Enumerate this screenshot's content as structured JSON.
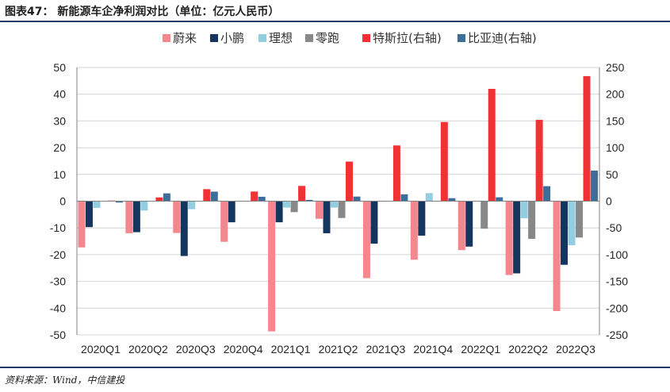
{
  "header": {
    "title": "图表47： 新能源车企净利润对比（单位：亿元人民币）"
  },
  "footer": {
    "source": "资料来源：Wind，中信建投"
  },
  "chart_data": {
    "type": "bar",
    "title": "新能源车企净利润对比（单位：亿元人民币）",
    "categories": [
      "2020Q1",
      "2020Q2",
      "2020Q3",
      "2020Q4",
      "2021Q1",
      "2021Q2",
      "2021Q3",
      "2021Q4",
      "2022Q1",
      "2022Q2",
      "2022Q3"
    ],
    "ylim_left": [
      -50,
      50
    ],
    "yticks_left": [
      "50",
      "40",
      "30",
      "20",
      "10",
      "0",
      "-10",
      "-20",
      "-30",
      "-40",
      "-50"
    ],
    "ylim_right": [
      -250,
      250
    ],
    "yticks_right": [
      "250",
      "200",
      "150",
      "100",
      "50",
      "0",
      "-50",
      "-100",
      "-150",
      "-200",
      "-250"
    ],
    "grid": "horizontal",
    "legend_position": "top",
    "series": [
      {
        "name": "蔚来",
        "axis": "left",
        "color": "#f4868e",
        "values": [
          -17.3,
          -12.0,
          -11.9,
          -15.2,
          -48.7,
          -6.6,
          -28.8,
          -21.9,
          -18.3,
          -27.6,
          -41.1
        ]
      },
      {
        "name": "小鹏",
        "axis": "left",
        "color": "#14365e",
        "values": [
          -9.7,
          -11.6,
          -20.5,
          -7.9,
          -7.9,
          -12.0,
          -15.9,
          -12.9,
          -17.0,
          -27.0,
          -23.8
        ]
      },
      {
        "name": "理想",
        "axis": "left",
        "color": "#92cde0",
        "values": [
          -2.5,
          -3.5,
          -3.0,
          -0.1,
          -2.4,
          -2.4,
          -0.2,
          3.0,
          -0.1,
          -6.4,
          -16.5
        ]
      },
      {
        "name": "零跑",
        "axis": "left",
        "color": "#888888",
        "values": [
          0,
          0,
          0,
          0,
          -4.1,
          -6.3,
          0,
          0,
          -10.3,
          -14.1,
          -13.6
        ]
      },
      {
        "name": "特斯拉(右轴)",
        "axis": "right",
        "color": "#f03234",
        "values": [
          1.1,
          7.0,
          22.4,
          18.0,
          28.5,
          74.0,
          104.2,
          148.0,
          210.0,
          152.0,
          233.8
        ]
      },
      {
        "name": "比亚迪(右轴)",
        "axis": "right",
        "color": "#3d6e9a",
        "values": [
          -2.6,
          14.6,
          17.8,
          8.2,
          2.4,
          8.6,
          12.8,
          5.6,
          7.2,
          28.0,
          57.2
        ]
      }
    ]
  }
}
